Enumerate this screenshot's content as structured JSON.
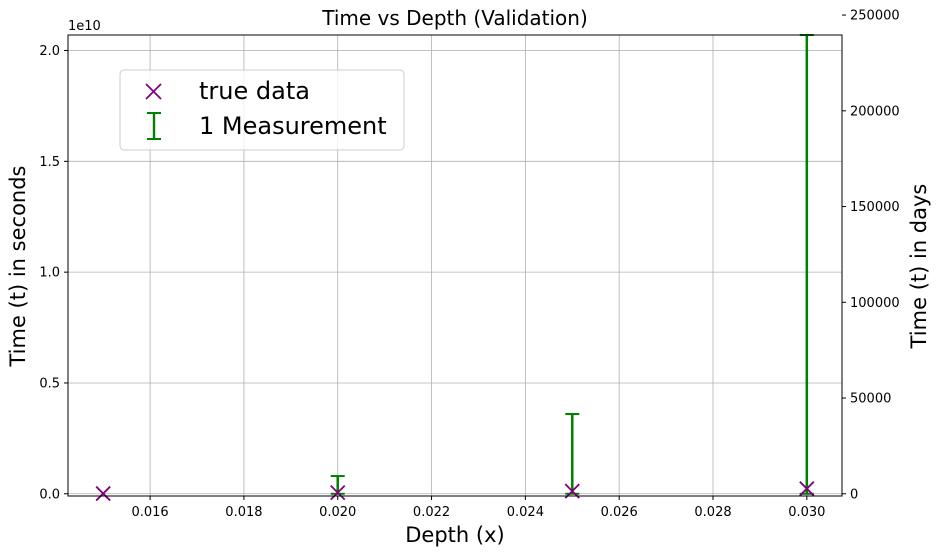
{
  "chart_data": {
    "type": "scatter",
    "title": "Time vs Depth (Validation)",
    "xlabel": "Depth (x)",
    "ylabel": "Time (t) in seconds",
    "ylabel_right": "Time (t) in days",
    "y_scale_label": "1e10",
    "xlim": [
      0.01425,
      0.03075
    ],
    "ylim": [
      -100000000,
      20700000000
    ],
    "ylim_right": [
      -1157.4,
      239583.3
    ],
    "x_ticks": [
      0.016,
      0.018,
      0.02,
      0.022,
      0.024,
      0.026,
      0.028,
      0.03
    ],
    "x_tick_labels": [
      "0.016",
      "0.018",
      "0.020",
      "0.022",
      "0.024",
      "0.026",
      "0.028",
      "0.030"
    ],
    "y_ticks": [
      0,
      5000000000,
      10000000000,
      15000000000,
      20000000000
    ],
    "y_tick_labels": [
      "0.0",
      "0.5",
      "1.0",
      "1.5",
      "2.0"
    ],
    "y_right_ticks": [
      0,
      50000,
      100000,
      150000,
      200000,
      250000
    ],
    "y_right_tick_labels": [
      "0",
      "50000",
      "100000",
      "150000",
      "200000",
      "250000"
    ],
    "grid": true,
    "legend_position": "upper-left",
    "series": [
      {
        "name": "true data",
        "kind": "scatter",
        "marker": "x",
        "color": "#800080",
        "x": [
          0.015,
          0.02,
          0.025,
          0.03
        ],
        "y": [
          10000000,
          50000000,
          120000000,
          230000000
        ]
      },
      {
        "name": "1 Measurement",
        "kind": "errorbar",
        "color": "#008000",
        "x": [
          0.015,
          0.02,
          0.025,
          0.03
        ],
        "y": [
          0,
          0,
          0,
          0
        ],
        "yerr_upper": [
          0,
          800000000,
          3600000000,
          20700000000
        ]
      }
    ]
  }
}
